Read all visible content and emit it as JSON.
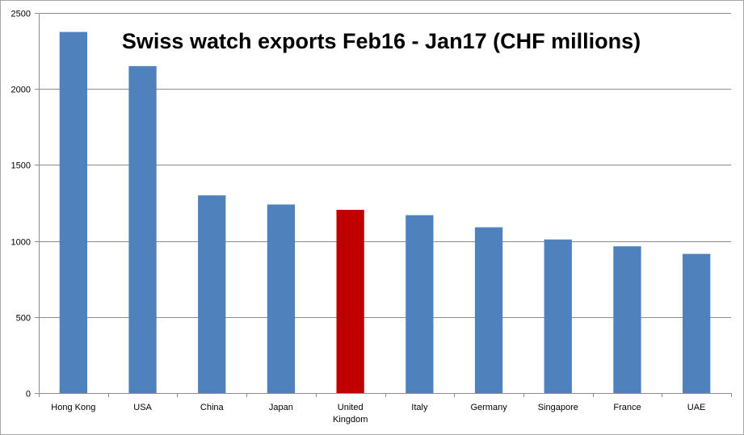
{
  "chart_data": {
    "type": "bar",
    "title": "Swiss watch exports Feb16 - Jan17 (CHF millions)",
    "xlabel": "",
    "ylabel": "",
    "categories": [
      "Hong Kong",
      "USA",
      "China",
      "Japan",
      "United Kingdom",
      "Italy",
      "Germany",
      "Singapore",
      "France",
      "UAE"
    ],
    "category_lines": [
      [
        "Hong Kong"
      ],
      [
        "USA"
      ],
      [
        "China"
      ],
      [
        "Japan"
      ],
      [
        "United",
        "Kingdom"
      ],
      [
        "Italy"
      ],
      [
        "Germany"
      ],
      [
        "Singapore"
      ],
      [
        "France"
      ],
      [
        "UAE"
      ]
    ],
    "values": [
      2375,
      2150,
      1300,
      1240,
      1205,
      1170,
      1090,
      1010,
      965,
      915
    ],
    "ylim": [
      0,
      2500
    ],
    "yticks": [
      0,
      500,
      1000,
      1500,
      2000,
      2500
    ],
    "grid": true,
    "legend": "none",
    "colors": {
      "default": "#4f81bd",
      "highlight": "#c00000",
      "grid": "#8c8c8c",
      "axis": "#8c8c8c"
    },
    "highlight_category": "United Kingdom"
  }
}
